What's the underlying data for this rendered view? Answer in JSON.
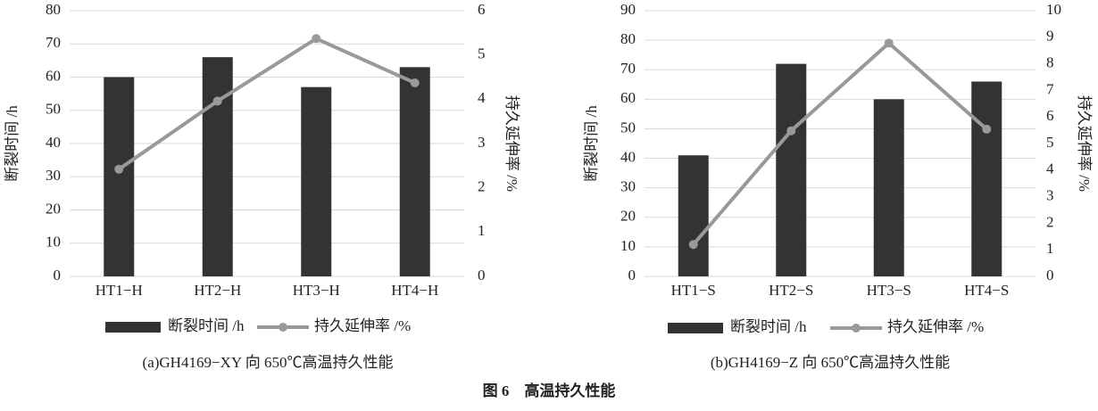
{
  "figure_title": "图 6　高温持久性能",
  "chart_data": [
    {
      "type": "bar",
      "title": "(a)GH4169−XY 向 650℃高温持久性能",
      "categories": [
        "HT1−H",
        "HT2−H",
        "HT3−H",
        "HT4−H"
      ],
      "ylabel": "断裂时间 /h",
      "y2label": "持久延伸率 /%",
      "ylim": [
        0,
        80
      ],
      "yticks": [
        0,
        10,
        20,
        30,
        40,
        50,
        60,
        70,
        80
      ],
      "y2lim": [
        0,
        6
      ],
      "y2ticks": [
        0,
        1,
        2,
        3,
        4,
        5,
        6
      ],
      "grid": true,
      "series": [
        {
          "name": "断裂时间 /h",
          "type": "bar",
          "color": "#333333",
          "values": [
            60,
            66,
            57,
            63
          ]
        },
        {
          "name": "持久延伸率 /%",
          "type": "line",
          "axis": "y2",
          "color": "#999999",
          "values": [
            2.42,
            3.96,
            5.37,
            4.37
          ]
        }
      ]
    },
    {
      "type": "bar",
      "title": "(b)GH4169−Z 向 650℃高温持久性能",
      "categories": [
        "HT1−S",
        "HT2−S",
        "HT3−S",
        "HT4−S"
      ],
      "ylabel": "断裂时间 /h",
      "y2label": "持久延伸率 /%",
      "ylim": [
        0,
        90
      ],
      "yticks": [
        0,
        10,
        20,
        30,
        40,
        50,
        60,
        70,
        80,
        90
      ],
      "y2lim": [
        0,
        10
      ],
      "y2ticks": [
        0,
        1,
        2,
        3,
        4,
        5,
        6,
        7,
        8,
        9,
        10
      ],
      "grid": true,
      "series": [
        {
          "name": "断裂时间 /h",
          "type": "bar",
          "color": "#333333",
          "values": [
            41,
            72,
            60,
            66
          ]
        },
        {
          "name": "持久延伸率 /%",
          "type": "line",
          "axis": "y2",
          "color": "#999999",
          "values": [
            1.2,
            5.48,
            8.78,
            5.54
          ]
        }
      ]
    }
  ]
}
